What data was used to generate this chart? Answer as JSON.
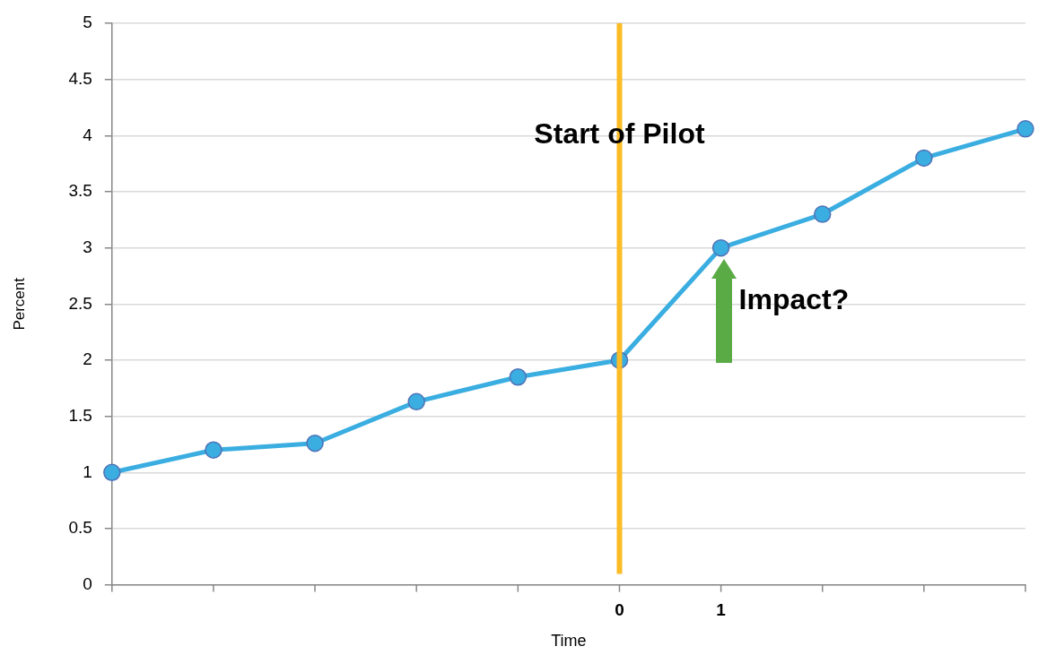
{
  "chart_data": {
    "type": "line",
    "xlabel": "Time",
    "ylabel": "Percent",
    "categories": [
      null,
      null,
      null,
      null,
      null,
      "0",
      "1",
      null,
      null,
      null
    ],
    "series": [
      {
        "color": "#3aade1",
        "values": [
          1.0,
          1.2,
          1.26,
          1.63,
          1.85,
          2.0,
          3.0,
          3.3,
          3.8,
          4.06
        ]
      }
    ],
    "ylim": [
      0,
      5
    ],
    "yticks": [
      0,
      0.5,
      1,
      1.5,
      2,
      2.5,
      3,
      3.5,
      4,
      4.5,
      5
    ],
    "grid": "y",
    "marker": "circle",
    "line_style": "solid",
    "ref_lines": [
      {
        "axis": "x",
        "value": "0",
        "label": "Start of Pilot",
        "color": "#fbbc25"
      }
    ],
    "annotations": [
      {
        "text": "Impact?",
        "x": "1",
        "y": 3
      }
    ]
  }
}
